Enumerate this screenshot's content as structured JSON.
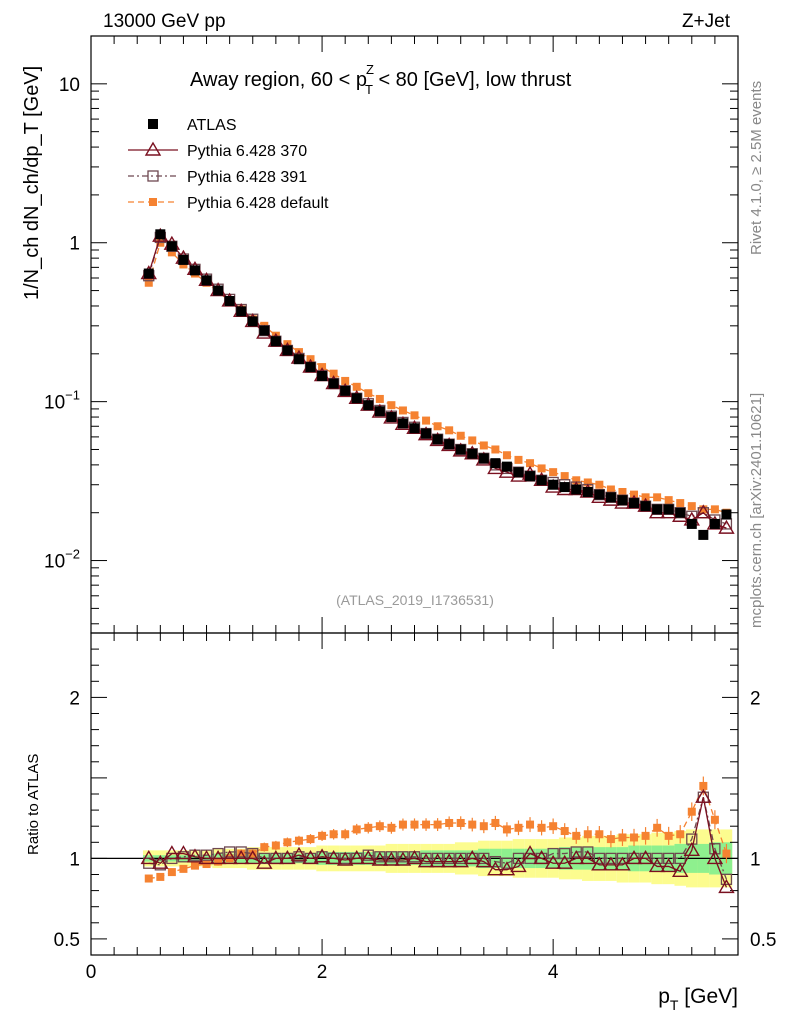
{
  "header": {
    "left": "13000 GeV pp",
    "right": "Z+Jet"
  },
  "side_labels": {
    "rivet": "Rivet 4.1.0, ≥ 2.5M events",
    "mcplots": "mcplots.cern.ch [arXiv:2401.10621]"
  },
  "chart_data": {
    "type": "scatter",
    "title": "Away region, 60 < p_T^Z < 80 [GeV], low thrust",
    "title_parts": {
      "pre": "Away region, 60 < p",
      "sup": "Z",
      "sub": "T",
      "post": " < 80 [GeV], low thrust"
    },
    "watermark": "(ATLAS_2019_I1736531)",
    "xlabel": "p_T [GeV]",
    "xlabel_parts": {
      "main": "p",
      "sub": "T",
      "unit": " [GeV]"
    },
    "ylabel_main": "1/N_ch dN_ch/dp_T [GeV]",
    "ylabel_ratio": "Ratio to ATLAS",
    "xlim": [
      0,
      5.6
    ],
    "ylim_main": [
      0.0035,
      20
    ],
    "ylim_ratio": [
      0.4,
      2.4
    ],
    "x_ticks": [
      "0",
      "2",
      "4"
    ],
    "y_ticks_main": [
      "10",
      "1",
      "10^-1",
      "10^-2"
    ],
    "y_ticks_ratio": [
      "2",
      "1",
      "0.5"
    ],
    "legend": [
      {
        "label": "ATLAS",
        "color": "#000000",
        "marker": "filled-square"
      },
      {
        "label": "Pythia 6.428 370",
        "color": "#7a1020",
        "marker": "open-triangle"
      },
      {
        "label": "Pythia 6.428 391",
        "color": "#6e4850",
        "marker": "open-square"
      },
      {
        "label": "Pythia 6.428 default",
        "color": "#f58231",
        "marker": "filled-square"
      }
    ],
    "x": [
      0.5,
      0.6,
      0.7,
      0.8,
      0.9,
      1.0,
      1.1,
      1.2,
      1.3,
      1.4,
      1.5,
      1.6,
      1.7,
      1.8,
      1.9,
      2.0,
      2.1,
      2.2,
      2.3,
      2.4,
      2.5,
      2.6,
      2.7,
      2.8,
      2.9,
      3.0,
      3.1,
      3.2,
      3.3,
      3.4,
      3.5,
      3.6,
      3.7,
      3.8,
      3.9,
      4.0,
      4.1,
      4.2,
      4.3,
      4.4,
      4.5,
      4.6,
      4.7,
      4.8,
      4.9,
      5.0,
      5.1,
      5.2,
      5.3,
      5.4,
      5.5
    ],
    "series": [
      {
        "name": "ATLAS",
        "values": [
          0.64,
          1.13,
          0.95,
          0.78,
          0.67,
          0.58,
          0.5,
          0.43,
          0.37,
          0.32,
          0.28,
          0.24,
          0.21,
          0.185,
          0.165,
          0.145,
          0.13,
          0.117,
          0.105,
          0.095,
          0.087,
          0.08,
          0.073,
          0.068,
          0.063,
          0.058,
          0.054,
          0.05,
          0.047,
          0.044,
          0.041,
          0.039,
          0.036,
          0.034,
          0.032,
          0.03,
          0.029,
          0.028,
          0.027,
          0.026,
          0.025,
          0.024,
          0.023,
          0.022,
          0.021,
          0.021,
          0.02,
          0.017,
          0.0145,
          0.017,
          0.0195
        ]
      },
      {
        "name": "Pythia 6.428 370",
        "values": [
          0.64,
          1.1,
          0.98,
          0.8,
          0.68,
          0.58,
          0.5,
          0.43,
          0.37,
          0.32,
          0.27,
          0.24,
          0.21,
          0.188,
          0.165,
          0.146,
          0.13,
          0.116,
          0.105,
          0.095,
          0.086,
          0.079,
          0.072,
          0.068,
          0.062,
          0.057,
          0.053,
          0.049,
          0.047,
          0.043,
          0.038,
          0.036,
          0.034,
          0.035,
          0.032,
          0.029,
          0.028,
          0.028,
          0.027,
          0.025,
          0.024,
          0.023,
          0.023,
          0.022,
          0.02,
          0.02,
          0.019,
          0.018,
          0.02,
          0.017,
          0.016
        ]
      },
      {
        "name": "Pythia 6.428 391",
        "values": [
          0.62,
          1.08,
          0.95,
          0.79,
          0.68,
          0.59,
          0.51,
          0.44,
          0.38,
          0.33,
          0.28,
          0.24,
          0.21,
          0.187,
          0.165,
          0.146,
          0.13,
          0.117,
          0.105,
          0.097,
          0.088,
          0.081,
          0.074,
          0.069,
          0.063,
          0.058,
          0.054,
          0.05,
          0.047,
          0.044,
          0.04,
          0.038,
          0.036,
          0.034,
          0.032,
          0.031,
          0.03,
          0.029,
          0.028,
          0.026,
          0.025,
          0.024,
          0.023,
          0.022,
          0.021,
          0.021,
          0.02,
          0.019,
          0.02,
          0.018,
          0.017
        ]
      },
      {
        "name": "Pythia 6.428 default",
        "values": [
          0.56,
          1.0,
          0.87,
          0.73,
          0.64,
          0.56,
          0.49,
          0.43,
          0.38,
          0.33,
          0.3,
          0.26,
          0.23,
          0.205,
          0.185,
          0.165,
          0.15,
          0.135,
          0.124,
          0.113,
          0.104,
          0.095,
          0.088,
          0.082,
          0.076,
          0.07,
          0.066,
          0.061,
          0.057,
          0.053,
          0.05,
          0.046,
          0.043,
          0.041,
          0.038,
          0.036,
          0.034,
          0.032,
          0.031,
          0.03,
          0.028,
          0.027,
          0.026,
          0.025,
          0.025,
          0.024,
          0.023,
          0.022,
          0.021,
          0.021,
          0.02
        ]
      }
    ],
    "ratio": [
      {
        "name": "Pythia 6.428 370",
        "values": [
          1.0,
          0.97,
          1.03,
          1.03,
          1.01,
          1.0,
          1.0,
          1.0,
          1.0,
          1.0,
          0.97,
          1.0,
          1.0,
          1.02,
          1.0,
          1.01,
          1.0,
          0.99,
          1.0,
          1.0,
          0.99,
          0.99,
          0.99,
          1.0,
          0.98,
          0.98,
          0.98,
          0.98,
          1.0,
          0.98,
          0.93,
          0.93,
          0.95,
          1.03,
          1.0,
          0.97,
          0.97,
          1.0,
          1.0,
          0.96,
          0.96,
          0.96,
          1.0,
          1.0,
          0.95,
          0.95,
          0.92,
          1.05,
          1.38,
          1.0,
          0.82
        ]
      },
      {
        "name": "Pythia 6.428 391",
        "values": [
          0.97,
          0.96,
          1.0,
          1.01,
          1.02,
          1.02,
          1.03,
          1.04,
          1.04,
          1.03,
          1.0,
          1.0,
          1.0,
          1.01,
          1.0,
          1.01,
          1.0,
          1.0,
          1.0,
          1.02,
          1.01,
          1.01,
          1.01,
          1.01,
          1.0,
          1.0,
          1.0,
          1.0,
          1.0,
          1.0,
          0.98,
          0.97,
          1.0,
          1.0,
          1.0,
          1.03,
          1.03,
          1.04,
          1.04,
          1.0,
          1.0,
          1.0,
          1.0,
          1.0,
          1.0,
          1.0,
          1.0,
          1.12,
          1.38,
          1.06,
          0.87
        ]
      },
      {
        "name": "Pythia 6.428 default",
        "values": [
          0.875,
          0.885,
          0.915,
          0.935,
          0.955,
          0.965,
          0.98,
          1.0,
          1.03,
          1.03,
          1.07,
          1.08,
          1.1,
          1.11,
          1.12,
          1.14,
          1.15,
          1.15,
          1.18,
          1.19,
          1.2,
          1.19,
          1.21,
          1.21,
          1.21,
          1.21,
          1.22,
          1.22,
          1.21,
          1.2,
          1.22,
          1.18,
          1.19,
          1.21,
          1.19,
          1.2,
          1.17,
          1.14,
          1.15,
          1.15,
          1.12,
          1.13,
          1.13,
          1.14,
          1.19,
          1.14,
          1.15,
          1.29,
          1.45,
          1.24,
          1.03
        ]
      }
    ],
    "ratio_band_yellow": [
      0.05,
      0.05,
      0.05,
      0.05,
      0.05,
      0.05,
      0.06,
      0.06,
      0.06,
      0.07,
      0.07,
      0.07,
      0.07,
      0.07,
      0.07,
      0.08,
      0.08,
      0.08,
      0.08,
      0.08,
      0.08,
      0.09,
      0.09,
      0.09,
      0.09,
      0.09,
      0.09,
      0.1,
      0.1,
      0.11,
      0.11,
      0.11,
      0.12,
      0.12,
      0.12,
      0.12,
      0.13,
      0.13,
      0.14,
      0.14,
      0.14,
      0.15,
      0.15,
      0.15,
      0.16,
      0.16,
      0.17,
      0.18,
      0.18,
      0.18,
      0.18
    ],
    "ratio_band_green": [
      0.02,
      0.02,
      0.02,
      0.02,
      0.02,
      0.02,
      0.03,
      0.03,
      0.03,
      0.03,
      0.03,
      0.03,
      0.03,
      0.03,
      0.03,
      0.04,
      0.04,
      0.04,
      0.04,
      0.04,
      0.04,
      0.04,
      0.04,
      0.04,
      0.05,
      0.05,
      0.05,
      0.05,
      0.05,
      0.06,
      0.06,
      0.06,
      0.06,
      0.06,
      0.06,
      0.06,
      0.07,
      0.07,
      0.07,
      0.07,
      0.07,
      0.07,
      0.08,
      0.08,
      0.08,
      0.08,
      0.09,
      0.09,
      0.09,
      0.1,
      0.1
    ]
  }
}
